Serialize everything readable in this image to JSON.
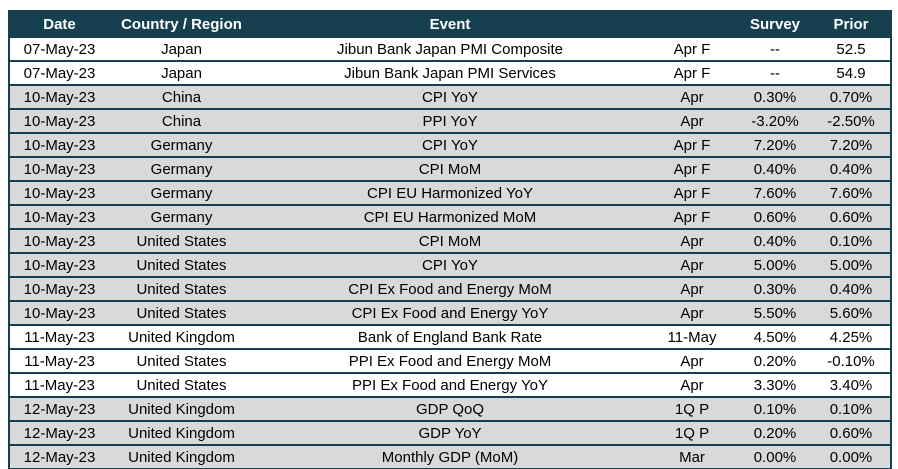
{
  "colors": {
    "header_bg": "#16404f",
    "header_text": "#ffffff",
    "border": "#16404f",
    "row_shade": "#d9d9d9",
    "row_plain": "#ffffff",
    "cell_text": "#000000"
  },
  "table": {
    "columns": [
      {
        "key": "date",
        "label": "Date"
      },
      {
        "key": "country",
        "label": "Country / Region"
      },
      {
        "key": "event",
        "label": "Event"
      },
      {
        "key": "period",
        "label": ""
      },
      {
        "key": "survey",
        "label": "Survey"
      },
      {
        "key": "prior",
        "label": "Prior"
      }
    ],
    "rows": [
      {
        "date": "07-May-23",
        "country": "Japan",
        "event": "Jibun Bank Japan PMI Composite",
        "period": "Apr F",
        "survey": "--",
        "prior": "52.5",
        "shaded": false
      },
      {
        "date": "07-May-23",
        "country": "Japan",
        "event": "Jibun Bank Japan PMI Services",
        "period": "Apr F",
        "survey": "--",
        "prior": "54.9",
        "shaded": false
      },
      {
        "date": "10-May-23",
        "country": "China",
        "event": "CPI YoY",
        "period": "Apr",
        "survey": "0.30%",
        "prior": "0.70%",
        "shaded": true
      },
      {
        "date": "10-May-23",
        "country": "China",
        "event": "PPI YoY",
        "period": "Apr",
        "survey": "-3.20%",
        "prior": "-2.50%",
        "shaded": true
      },
      {
        "date": "10-May-23",
        "country": "Germany",
        "event": "CPI YoY",
        "period": "Apr F",
        "survey": "7.20%",
        "prior": "7.20%",
        "shaded": true
      },
      {
        "date": "10-May-23",
        "country": "Germany",
        "event": "CPI MoM",
        "period": "Apr F",
        "survey": "0.40%",
        "prior": "0.40%",
        "shaded": true
      },
      {
        "date": "10-May-23",
        "country": "Germany",
        "event": "CPI EU Harmonized YoY",
        "period": "Apr F",
        "survey": "7.60%",
        "prior": "7.60%",
        "shaded": true
      },
      {
        "date": "10-May-23",
        "country": "Germany",
        "event": "CPI EU Harmonized MoM",
        "period": "Apr F",
        "survey": "0.60%",
        "prior": "0.60%",
        "shaded": true
      },
      {
        "date": "10-May-23",
        "country": "United States",
        "event": "CPI MoM",
        "period": "Apr",
        "survey": "0.40%",
        "prior": "0.10%",
        "shaded": true
      },
      {
        "date": "10-May-23",
        "country": "United States",
        "event": "CPI YoY",
        "period": "Apr",
        "survey": "5.00%",
        "prior": "5.00%",
        "shaded": true
      },
      {
        "date": "10-May-23",
        "country": "United States",
        "event": "CPI Ex Food and Energy MoM",
        "period": "Apr",
        "survey": "0.30%",
        "prior": "0.40%",
        "shaded": true
      },
      {
        "date": "10-May-23",
        "country": "United States",
        "event": "CPI Ex Food and Energy YoY",
        "period": "Apr",
        "survey": "5.50%",
        "prior": "5.60%",
        "shaded": true
      },
      {
        "date": "11-May-23",
        "country": "United Kingdom",
        "event": "Bank of England Bank Rate",
        "period": "11-May",
        "survey": "4.50%",
        "prior": "4.25%",
        "shaded": false
      },
      {
        "date": "11-May-23",
        "country": "United States",
        "event": "PPI Ex Food and Energy MoM",
        "period": "Apr",
        "survey": "0.20%",
        "prior": "-0.10%",
        "shaded": false
      },
      {
        "date": "11-May-23",
        "country": "United States",
        "event": "PPI Ex Food and Energy YoY",
        "period": "Apr",
        "survey": "3.30%",
        "prior": "3.40%",
        "shaded": false
      },
      {
        "date": "12-May-23",
        "country": "United Kingdom",
        "event": "GDP QoQ",
        "period": "1Q P",
        "survey": "0.10%",
        "prior": "0.10%",
        "shaded": true
      },
      {
        "date": "12-May-23",
        "country": "United Kingdom",
        "event": "GDP YoY",
        "period": "1Q P",
        "survey": "0.20%",
        "prior": "0.60%",
        "shaded": true
      },
      {
        "date": "12-May-23",
        "country": "United Kingdom",
        "event": "Monthly GDP (MoM)",
        "period": "Mar",
        "survey": "0.00%",
        "prior": "0.00%",
        "shaded": true
      }
    ]
  }
}
